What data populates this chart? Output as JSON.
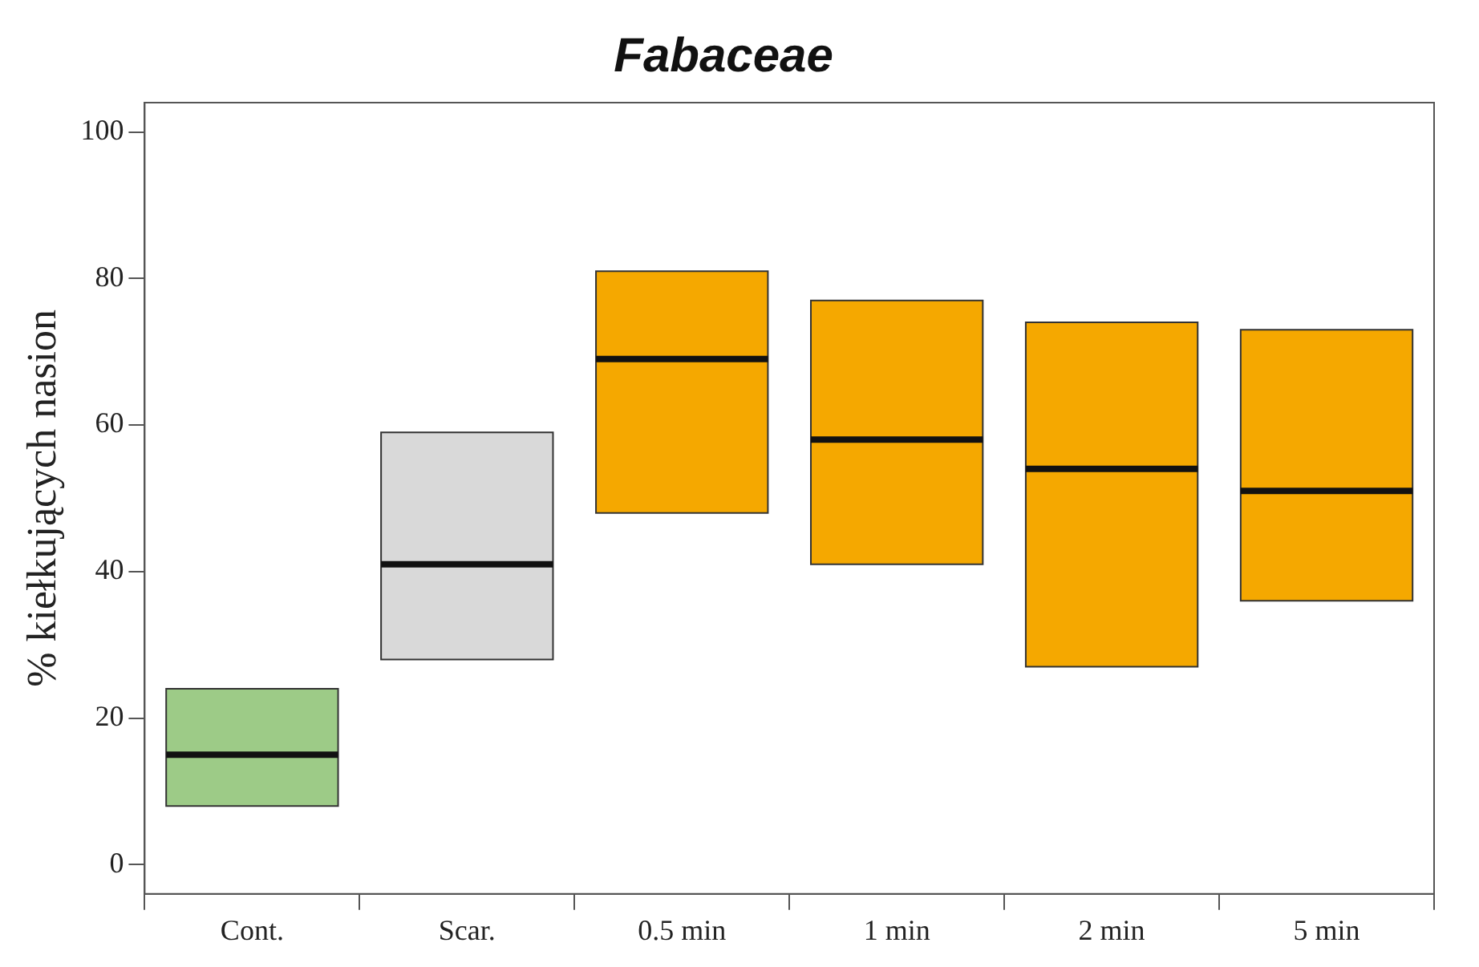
{
  "chart_data": {
    "type": "box",
    "title": "Fabaceae",
    "ylabel": "% kiełkujących nasion",
    "categories": [
      "Cont.",
      "Scar.",
      "0.5 min",
      "1 min",
      "2 min",
      "5 min"
    ],
    "colors": [
      "#9dcb87",
      "#d9d9d9",
      "#f5a800",
      "#f5a800",
      "#f5a800",
      "#f5a800"
    ],
    "boxes": [
      {
        "low": 8,
        "q1": 8,
        "median": 15,
        "q3": 24,
        "high": 24
      },
      {
        "low": 28,
        "q1": 28,
        "median": 41,
        "q3": 59,
        "high": 59
      },
      {
        "low": 48,
        "q1": 48,
        "median": 69,
        "q3": 81,
        "high": 81
      },
      {
        "low": 41,
        "q1": 41,
        "median": 58,
        "q3": 77,
        "high": 77
      },
      {
        "low": 27,
        "q1": 27,
        "median": 54,
        "q3": 74,
        "high": 74
      },
      {
        "low": 36,
        "q1": 36,
        "median": 51,
        "q3": 73,
        "high": 73
      }
    ],
    "ylim": [
      -4,
      104
    ],
    "yticks": [
      0,
      20,
      40,
      60,
      80,
      100
    ],
    "grid": false,
    "legend": false
  }
}
